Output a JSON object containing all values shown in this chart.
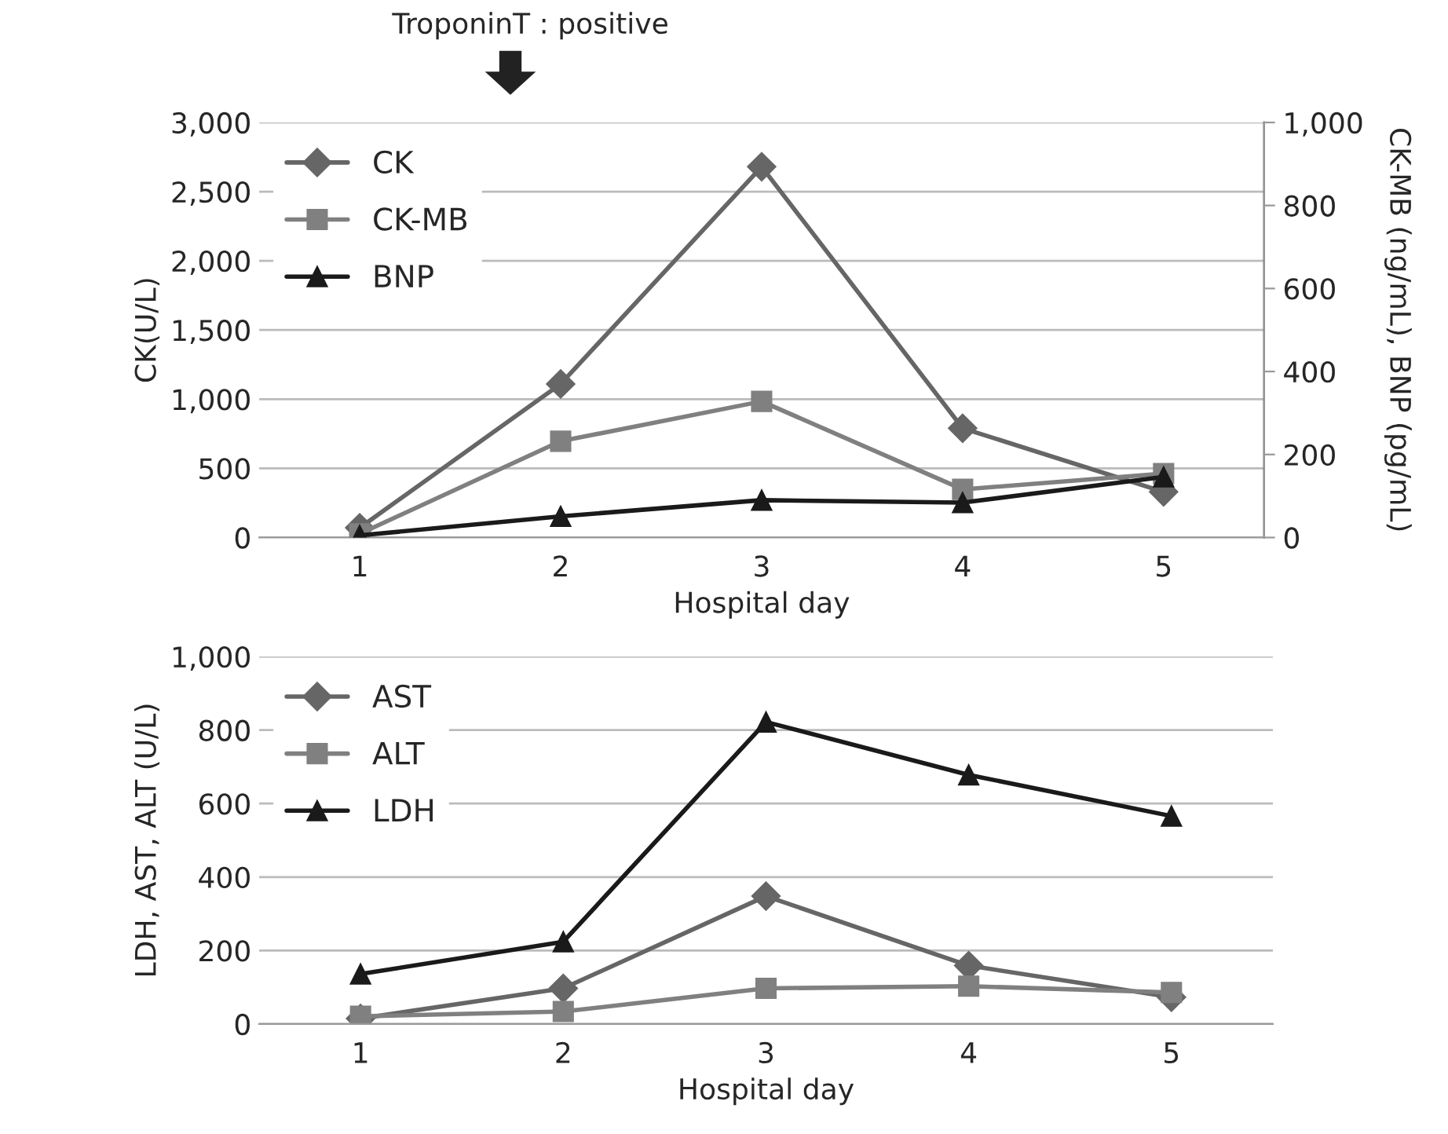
{
  "chart_data": [
    {
      "type": "line",
      "categories": [
        "1",
        "2",
        "3",
        "4",
        "5"
      ],
      "xlabel": "Hospital day",
      "ylabel": "CK(U/L)",
      "y2label": "CK-MB (ng/mL), BNP (pg/mL)",
      "annotations": [
        "TroponinT : positive"
      ],
      "series": [
        {
          "name": "CK",
          "color": "#666666",
          "marker": "diamond",
          "values": [
            70,
            1110,
            2680,
            790,
            330
          ]
        },
        {
          "name": "CK-MB",
          "color": "#808080",
          "marker": "square",
          "axis": "y2",
          "values": [
            9,
            232,
            328,
            116,
            154
          ]
        },
        {
          "name": "BNP",
          "color": "#1a1a1a",
          "marker": "triangle",
          "axis": "y2",
          "values": [
            5,
            51,
            90,
            84,
            146
          ]
        }
      ],
      "ylim": [
        0,
        3000
      ],
      "yticks": [
        0,
        500,
        {
          "value": 1000,
          "label": "1,000"
        },
        {
          "value": 1500,
          "label": "1,500"
        },
        {
          "value": 2000,
          "label": "2,000"
        },
        {
          "value": 2500,
          "label": "2,500"
        },
        {
          "value": 3000,
          "label": "3,000"
        }
      ],
      "y2lim": [
        0,
        1000
      ],
      "y2ticks": [
        0,
        200,
        400,
        600,
        800,
        {
          "value": 1000,
          "label": "1,000"
        }
      ],
      "grid": "y",
      "legend": "top left",
      "line_style": "solid"
    },
    {
      "type": "line",
      "categories": [
        "1",
        "2",
        "3",
        "4",
        "5"
      ],
      "xlabel": "Hospital day",
      "ylabel": "LDH, AST, ALT (U/L)",
      "series": [
        {
          "name": "AST",
          "color": "#666666",
          "marker": "diamond",
          "values": [
            15,
            97,
            348,
            159,
            73
          ]
        },
        {
          "name": "ALT",
          "color": "#808080",
          "marker": "square",
          "values": [
            21,
            34,
            97,
            103,
            86
          ]
        },
        {
          "name": "LDH",
          "color": "#1a1a1a",
          "marker": "triangle",
          "values": [
            136,
            224,
            822,
            678,
            566
          ]
        }
      ],
      "ylim": [
        0,
        1000
      ],
      "yticks": [
        0,
        200,
        400,
        600,
        800,
        {
          "value": 1000,
          "label": "1,000"
        }
      ],
      "grid": "y",
      "legend": "top left",
      "line_style": "solid"
    }
  ]
}
